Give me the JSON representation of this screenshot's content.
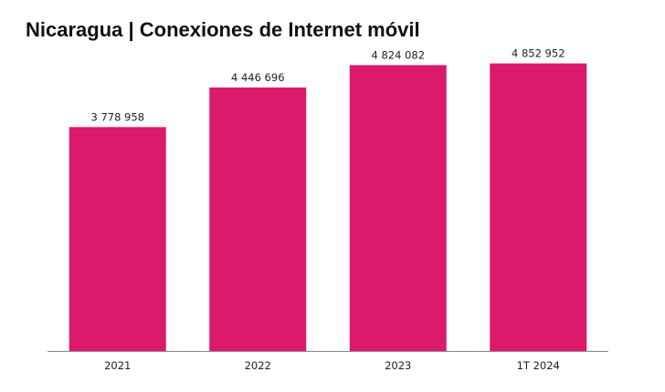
{
  "chart_data": {
    "type": "bar",
    "title": "Nicaragua | Conexiones de Internet móvil",
    "categories": [
      "2021",
      "2022",
      "2023",
      "1T 2024"
    ],
    "values": [
      3778958,
      4446696,
      4824082,
      4852952
    ],
    "value_labels": [
      "3 778 958",
      "4 446 696",
      "4 824 082",
      "4 852 952"
    ],
    "xlabel": "",
    "ylabel": "",
    "ylim": [
      0,
      5000000
    ],
    "grid": false,
    "legend": "none",
    "bar_color": "#DB1A6C",
    "axis_color": "#888888"
  }
}
